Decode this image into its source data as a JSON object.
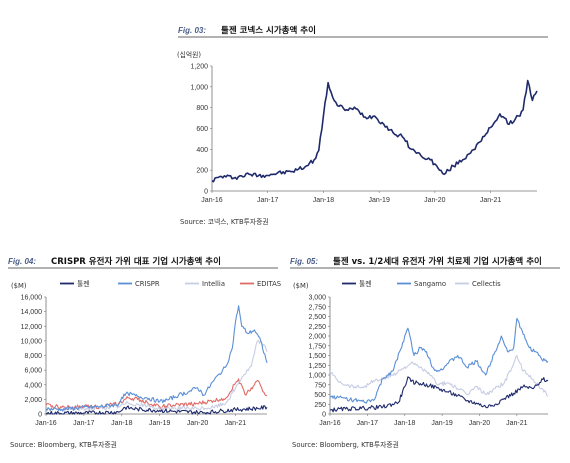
{
  "chart_data": [
    {
      "type": "line",
      "fig_label": "Fig. 03:",
      "title": "툴젠 코넥스 시가총액 추이",
      "ylabel": "(십억원)",
      "ylim": [
        0,
        1200
      ],
      "yticks": [
        "0",
        "200",
        "400",
        "600",
        "800",
        "1,000",
        "1,200"
      ],
      "x_start": "2016-01",
      "x_end": "2021-11",
      "xticks": [
        "Jan-16",
        "Jan-17",
        "Jan-18",
        "Jan-19",
        "Jan-20",
        "Jan-21"
      ],
      "grid": false,
      "source": "Source: 코넥스, KTB투자증권",
      "series": [
        {
          "color": "#1f2a6b",
          "x": [
            "2016-01",
            "2016-03",
            "2016-06",
            "2016-09",
            "2016-12",
            "2017-03",
            "2017-06",
            "2017-09",
            "2017-11",
            "2017-12",
            "2018-01",
            "2018-02",
            "2018-03",
            "2018-04",
            "2018-06",
            "2018-08",
            "2018-10",
            "2018-12",
            "2019-02",
            "2019-04",
            "2019-06",
            "2019-08",
            "2019-10",
            "2019-12",
            "2020-01",
            "2020-02",
            "2020-03",
            "2020-05",
            "2020-07",
            "2020-09",
            "2020-11",
            "2021-01",
            "2021-03",
            "2021-05",
            "2021-07",
            "2021-08",
            "2021-09",
            "2021-10",
            "2021-11"
          ],
          "values": [
            100,
            140,
            130,
            160,
            150,
            170,
            185,
            230,
            300,
            390,
            720,
            1040,
            900,
            820,
            780,
            790,
            710,
            720,
            640,
            560,
            520,
            400,
            340,
            300,
            260,
            200,
            160,
            240,
            300,
            390,
            480,
            610,
            740,
            640,
            720,
            780,
            1060,
            870,
            960
          ]
        }
      ]
    },
    {
      "type": "line",
      "fig_label": "Fig. 04:",
      "title": "CRISPR 유전자 가위 대표 기업 시가총액 추이",
      "ylabel": "($M)",
      "ylim": [
        0,
        16000
      ],
      "yticks": [
        "0",
        "2,000",
        "4,000",
        "6,000",
        "8,000",
        "10,000",
        "12,000",
        "14,000",
        "16,000"
      ],
      "x_start": "2016-01",
      "x_end": "2021-11",
      "xticks": [
        "Jan-16",
        "Jan-17",
        "Jan-18",
        "Jan-19",
        "Jan-20",
        "Jan-21"
      ],
      "grid": false,
      "source": "Source: Bloomberg, KTB투자증권",
      "series": [
        {
          "name": "툴젠",
          "color": "#1f2a6b",
          "x": [
            "2016-01",
            "2017-01",
            "2017-12",
            "2018-02",
            "2018-06",
            "2019-01",
            "2019-06",
            "2020-01",
            "2020-03",
            "2020-09",
            "2021-01",
            "2021-08",
            "2021-11"
          ],
          "values": [
            100,
            130,
            260,
            900,
            650,
            480,
            350,
            230,
            170,
            450,
            600,
            780,
            920
          ]
        },
        {
          "name": "CRISPR",
          "color": "#5b8fd6",
          "x": [
            "2016-01",
            "2016-06",
            "2017-01",
            "2017-06",
            "2017-12",
            "2018-01",
            "2018-03",
            "2018-06",
            "2018-09",
            "2019-01",
            "2019-04",
            "2019-07",
            "2019-10",
            "2020-01",
            "2020-03",
            "2020-06",
            "2020-08",
            "2020-10",
            "2020-12",
            "2021-01",
            "2021-02",
            "2021-03",
            "2021-05",
            "2021-07",
            "2021-09",
            "2021-11"
          ],
          "values": [
            700,
            650,
            900,
            1000,
            1300,
            2300,
            2800,
            2400,
            2200,
            1700,
            2000,
            2600,
            3000,
            3600,
            2600,
            4500,
            5500,
            6500,
            9000,
            12500,
            14800,
            12000,
            11000,
            11500,
            10000,
            7000
          ]
        },
        {
          "name": "Intellia",
          "color": "#c8cde4",
          "x": [
            "2016-06",
            "2017-01",
            "2017-12",
            "2018-03",
            "2018-09",
            "2019-01",
            "2019-06",
            "2020-01",
            "2020-06",
            "2020-10",
            "2021-01",
            "2021-03",
            "2021-06",
            "2021-08",
            "2021-10",
            "2021-11"
          ],
          "values": [
            600,
            700,
            1000,
            1500,
            1100,
            700,
            800,
            700,
            900,
            1500,
            3500,
            5000,
            6500,
            10000,
            9500,
            8500
          ]
        },
        {
          "name": "EDITAS",
          "color": "#e06a66",
          "x": [
            "2016-01",
            "2016-06",
            "2017-01",
            "2017-06",
            "2017-12",
            "2018-03",
            "2018-06",
            "2018-09",
            "2019-01",
            "2019-06",
            "2020-01",
            "2020-06",
            "2020-10",
            "2021-01",
            "2021-02",
            "2021-04",
            "2021-07",
            "2021-08",
            "2021-10",
            "2021-11"
          ],
          "values": [
            1200,
            900,
            1000,
            1000,
            1400,
            2200,
            2000,
            1600,
            1000,
            1200,
            1400,
            1800,
            2200,
            4200,
            4800,
            2700,
            4000,
            4600,
            3000,
            2500
          ]
        }
      ]
    },
    {
      "type": "line",
      "fig_label": "Fig. 05:",
      "title": "툴젠 vs. 1/2세대 유전자 가위 치료제 기업 시가총액 추이",
      "ylabel": "($M)",
      "ylim": [
        0,
        3000
      ],
      "yticks": [
        "0",
        "250",
        "500",
        "750",
        "1,000",
        "1,250",
        "1,500",
        "1,750",
        "2,000",
        "2,250",
        "2,500",
        "2,750",
        "3,000"
      ],
      "x_start": "2016-01",
      "x_end": "2021-11",
      "xticks": [
        "Jan-16",
        "Jan-17",
        "Jan-18",
        "Jan-19",
        "Jan-20",
        "Jan-21"
      ],
      "grid": false,
      "source": "Source: Bloomberg, KTB투자증권",
      "series": [
        {
          "name": "툴젠",
          "color": "#1f2a6b",
          "x": [
            "2016-01",
            "2016-06",
            "2016-12",
            "2017-06",
            "2017-11",
            "2018-01",
            "2018-02",
            "2018-03",
            "2018-06",
            "2018-09",
            "2018-12",
            "2019-03",
            "2019-06",
            "2019-09",
            "2019-12",
            "2020-03",
            "2020-06",
            "2020-09",
            "2020-12",
            "2021-03",
            "2021-06",
            "2021-08",
            "2021-09",
            "2021-11"
          ],
          "values": [
            100,
            130,
            150,
            180,
            300,
            700,
            950,
            830,
            780,
            730,
            650,
            560,
            470,
            340,
            280,
            180,
            250,
            400,
            530,
            700,
            650,
            750,
            900,
            850
          ]
        },
        {
          "name": "Sangamo",
          "color": "#5b8fd6",
          "x": [
            "2016-01",
            "2016-06",
            "2016-12",
            "2017-03",
            "2017-06",
            "2017-09",
            "2017-12",
            "2018-01",
            "2018-02",
            "2018-04",
            "2018-06",
            "2018-08",
            "2018-10",
            "2018-12",
            "2019-03",
            "2019-06",
            "2019-09",
            "2019-12",
            "2020-03",
            "2020-06",
            "2020-08",
            "2020-10",
            "2020-12",
            "2021-01",
            "2021-03",
            "2021-05",
            "2021-07",
            "2021-09",
            "2021-11"
          ],
          "values": [
            450,
            400,
            300,
            350,
            900,
            1100,
            1700,
            2000,
            2200,
            1500,
            1700,
            1600,
            1200,
            1100,
            1300,
            1500,
            1200,
            1350,
            1000,
            1600,
            2000,
            1600,
            1700,
            2450,
            2050,
            1700,
            1600,
            1400,
            1350
          ]
        },
        {
          "name": "Cellectis",
          "color": "#c8cde4",
          "x": [
            "2016-01",
            "2016-03",
            "2016-06",
            "2016-09",
            "2016-12",
            "2017-03",
            "2017-06",
            "2017-09",
            "2017-12",
            "2018-03",
            "2018-06",
            "2018-09",
            "2018-12",
            "2019-03",
            "2019-06",
            "2019-09",
            "2019-12",
            "2020-03",
            "2020-06",
            "2020-09",
            "2020-12",
            "2021-01",
            "2021-03",
            "2021-06",
            "2021-09",
            "2021-11"
          ],
          "values": [
            1100,
            900,
            750,
            700,
            700,
            850,
            900,
            1000,
            1150,
            1300,
            1200,
            1000,
            750,
            800,
            650,
            500,
            700,
            500,
            650,
            800,
            1300,
            1500,
            1100,
            900,
            650,
            450
          ]
        }
      ]
    }
  ]
}
